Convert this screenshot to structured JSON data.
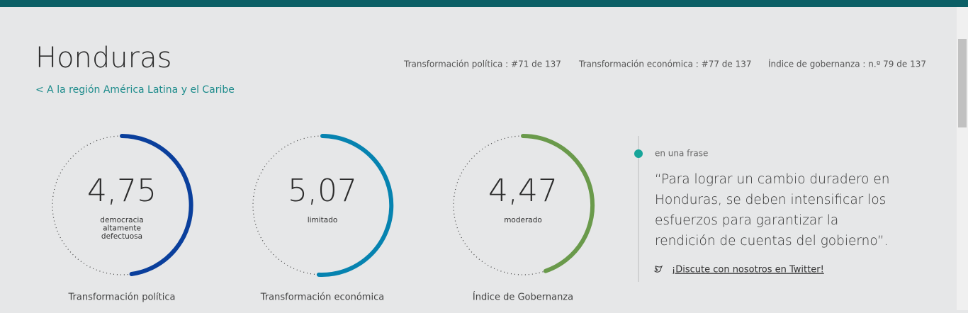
{
  "header": {
    "title": "Honduras",
    "back_link": "< A la región América Latina y el Caribe",
    "rankings": [
      "Transformación política :  #71 de 137",
      "Transformación económica :  #77 de 137",
      "Índice de gobernanza :  n.º 79 de 137"
    ]
  },
  "gauges": [
    {
      "score": "4,75",
      "status": [
        "democracia",
        "altamente",
        "defectuosa"
      ],
      "caption": "Transformación política"
    },
    {
      "score": "5,07",
      "status": [
        "limitado"
      ],
      "caption": "Transformación económica"
    },
    {
      "score": "4,47",
      "status": [
        "moderado"
      ],
      "caption": "Índice de Gobernanza"
    }
  ],
  "quote": {
    "label": "en una frase",
    "lines": [
      "“Para lograr un cambio duradero en",
      "Honduras, se deben intensificar los",
      "esfuerzos para garantizar la",
      "rendición de cuentas del gobierno”."
    ],
    "link": "¡Discute con nosotros en Twitter!"
  }
}
